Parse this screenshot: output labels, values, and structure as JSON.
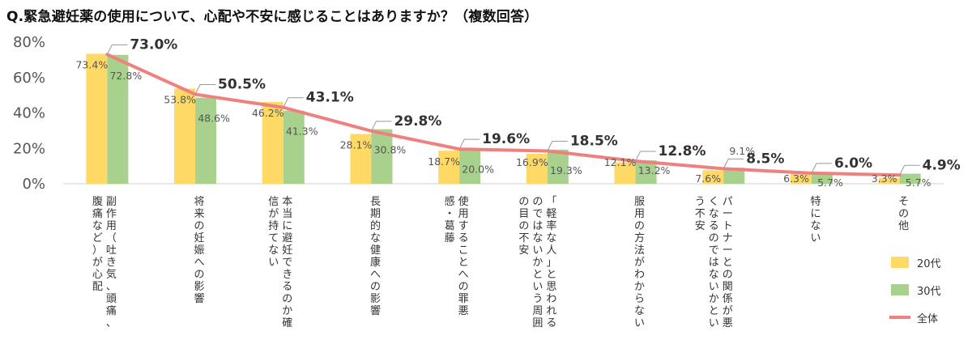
{
  "title": "Q.緊急避妊薬の使用について、心配や不安に感じることはありますか？（複数回答）",
  "chart_data": {
    "type": "bar",
    "title": "Q.緊急避妊薬の使用について、心配や不安に感じることはありますか？（複数回答）",
    "ylim": [
      0,
      80
    ],
    "yticks": [
      0,
      20,
      40,
      60,
      80
    ],
    "ytick_labels": [
      "0%",
      "20%",
      "40%",
      "60%",
      "80%"
    ],
    "categories": [
      {
        "lines": [
          "副作用（吐き気、頭痛、",
          "腹痛など）が心配"
        ]
      },
      {
        "lines": [
          "将来の妊娠への影響"
        ]
      },
      {
        "lines": [
          "本当に避妊できるのか確",
          "信が持てない"
        ]
      },
      {
        "lines": [
          "長期的な健康への影響"
        ]
      },
      {
        "lines": [
          "使用することへの罪悪",
          "感・葛藤"
        ]
      },
      {
        "lines": [
          "「軽率な人」と思われる",
          "のではないかという周囲",
          "の目の不安"
        ]
      },
      {
        "lines": [
          "服用の方法がわからない"
        ]
      },
      {
        "lines": [
          "パートナーとの関係が悪",
          "くなるのではないかとい",
          "う不安"
        ]
      },
      {
        "lines": [
          "特にない"
        ]
      },
      {
        "lines": [
          "その他"
        ]
      }
    ],
    "series": [
      {
        "name": "20代",
        "kind": "bar",
        "color": "#FFD966",
        "values": [
          73.4,
          53.8,
          46.2,
          28.1,
          18.7,
          16.9,
          12.1,
          7.6,
          6.3,
          3.3
        ],
        "labels": [
          "73.4%",
          "53.8%",
          "46.2%",
          "28.1%",
          "18.7%",
          "16.9%",
          "12.1%",
          "7.6%",
          "6.3%",
          "3.3%"
        ]
      },
      {
        "name": "30代",
        "kind": "bar",
        "color": "#A9D18E",
        "values": [
          72.8,
          48.6,
          41.3,
          30.8,
          20.0,
          19.3,
          13.2,
          9.1,
          5.7,
          5.7
        ],
        "labels": [
          "72.8%",
          "48.6%",
          "41.3%",
          "30.8%",
          "20.0%",
          "19.3%",
          "13.2%",
          "9.1%",
          "5.7%",
          "5.7%"
        ]
      },
      {
        "name": "全体",
        "kind": "line",
        "color": "#F08080",
        "values": [
          73.0,
          50.5,
          43.1,
          29.8,
          19.6,
          18.5,
          12.8,
          8.5,
          6.0,
          4.9
        ],
        "labels": [
          "73.0%",
          "50.5%",
          "43.1%",
          "29.8%",
          "19.6%",
          "18.5%",
          "12.8%",
          "8.5%",
          "6.0%",
          "4.9%"
        ]
      }
    ],
    "legend": {
      "position": "bottom-right",
      "items": [
        {
          "label": "20代",
          "color": "#FFD966",
          "marker": "square"
        },
        {
          "label": "30代",
          "color": "#A9D18E",
          "marker": "square"
        },
        {
          "label": "全体",
          "color": "#F08080",
          "marker": "line"
        }
      ]
    }
  }
}
